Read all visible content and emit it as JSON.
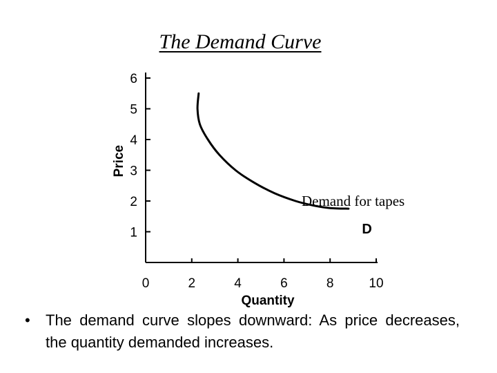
{
  "title": "The Demand Curve",
  "chart_data": {
    "type": "line",
    "xlabel": "Quantity",
    "ylabel": "Price",
    "xlim": [
      0,
      10
    ],
    "ylim": [
      0,
      6
    ],
    "x_ticks": [
      "0",
      "2",
      "4",
      "6",
      "8",
      "10"
    ],
    "y_ticks": [
      "1",
      "2",
      "3",
      "4",
      "5",
      "6"
    ],
    "grid": false,
    "series": [
      {
        "x": [
          2.3,
          2.25,
          2.35,
          2.7,
          3.2,
          3.9,
          4.7,
          5.6,
          6.5,
          7.3,
          8.0,
          8.8
        ],
        "y": [
          5.5,
          5.0,
          4.5,
          4.0,
          3.5,
          3.0,
          2.6,
          2.25,
          2.0,
          1.85,
          1.77,
          1.75
        ]
      }
    ],
    "annotations": [
      {
        "text": "Demand for tapes",
        "x": 9.0,
        "y": 2.0
      },
      {
        "text": "D",
        "x": 9.6,
        "y": 1.1
      }
    ]
  },
  "bullet": {
    "symbol": "•",
    "text": "The demand curve slopes downward: As price decreases, the quantity demanded increases."
  }
}
